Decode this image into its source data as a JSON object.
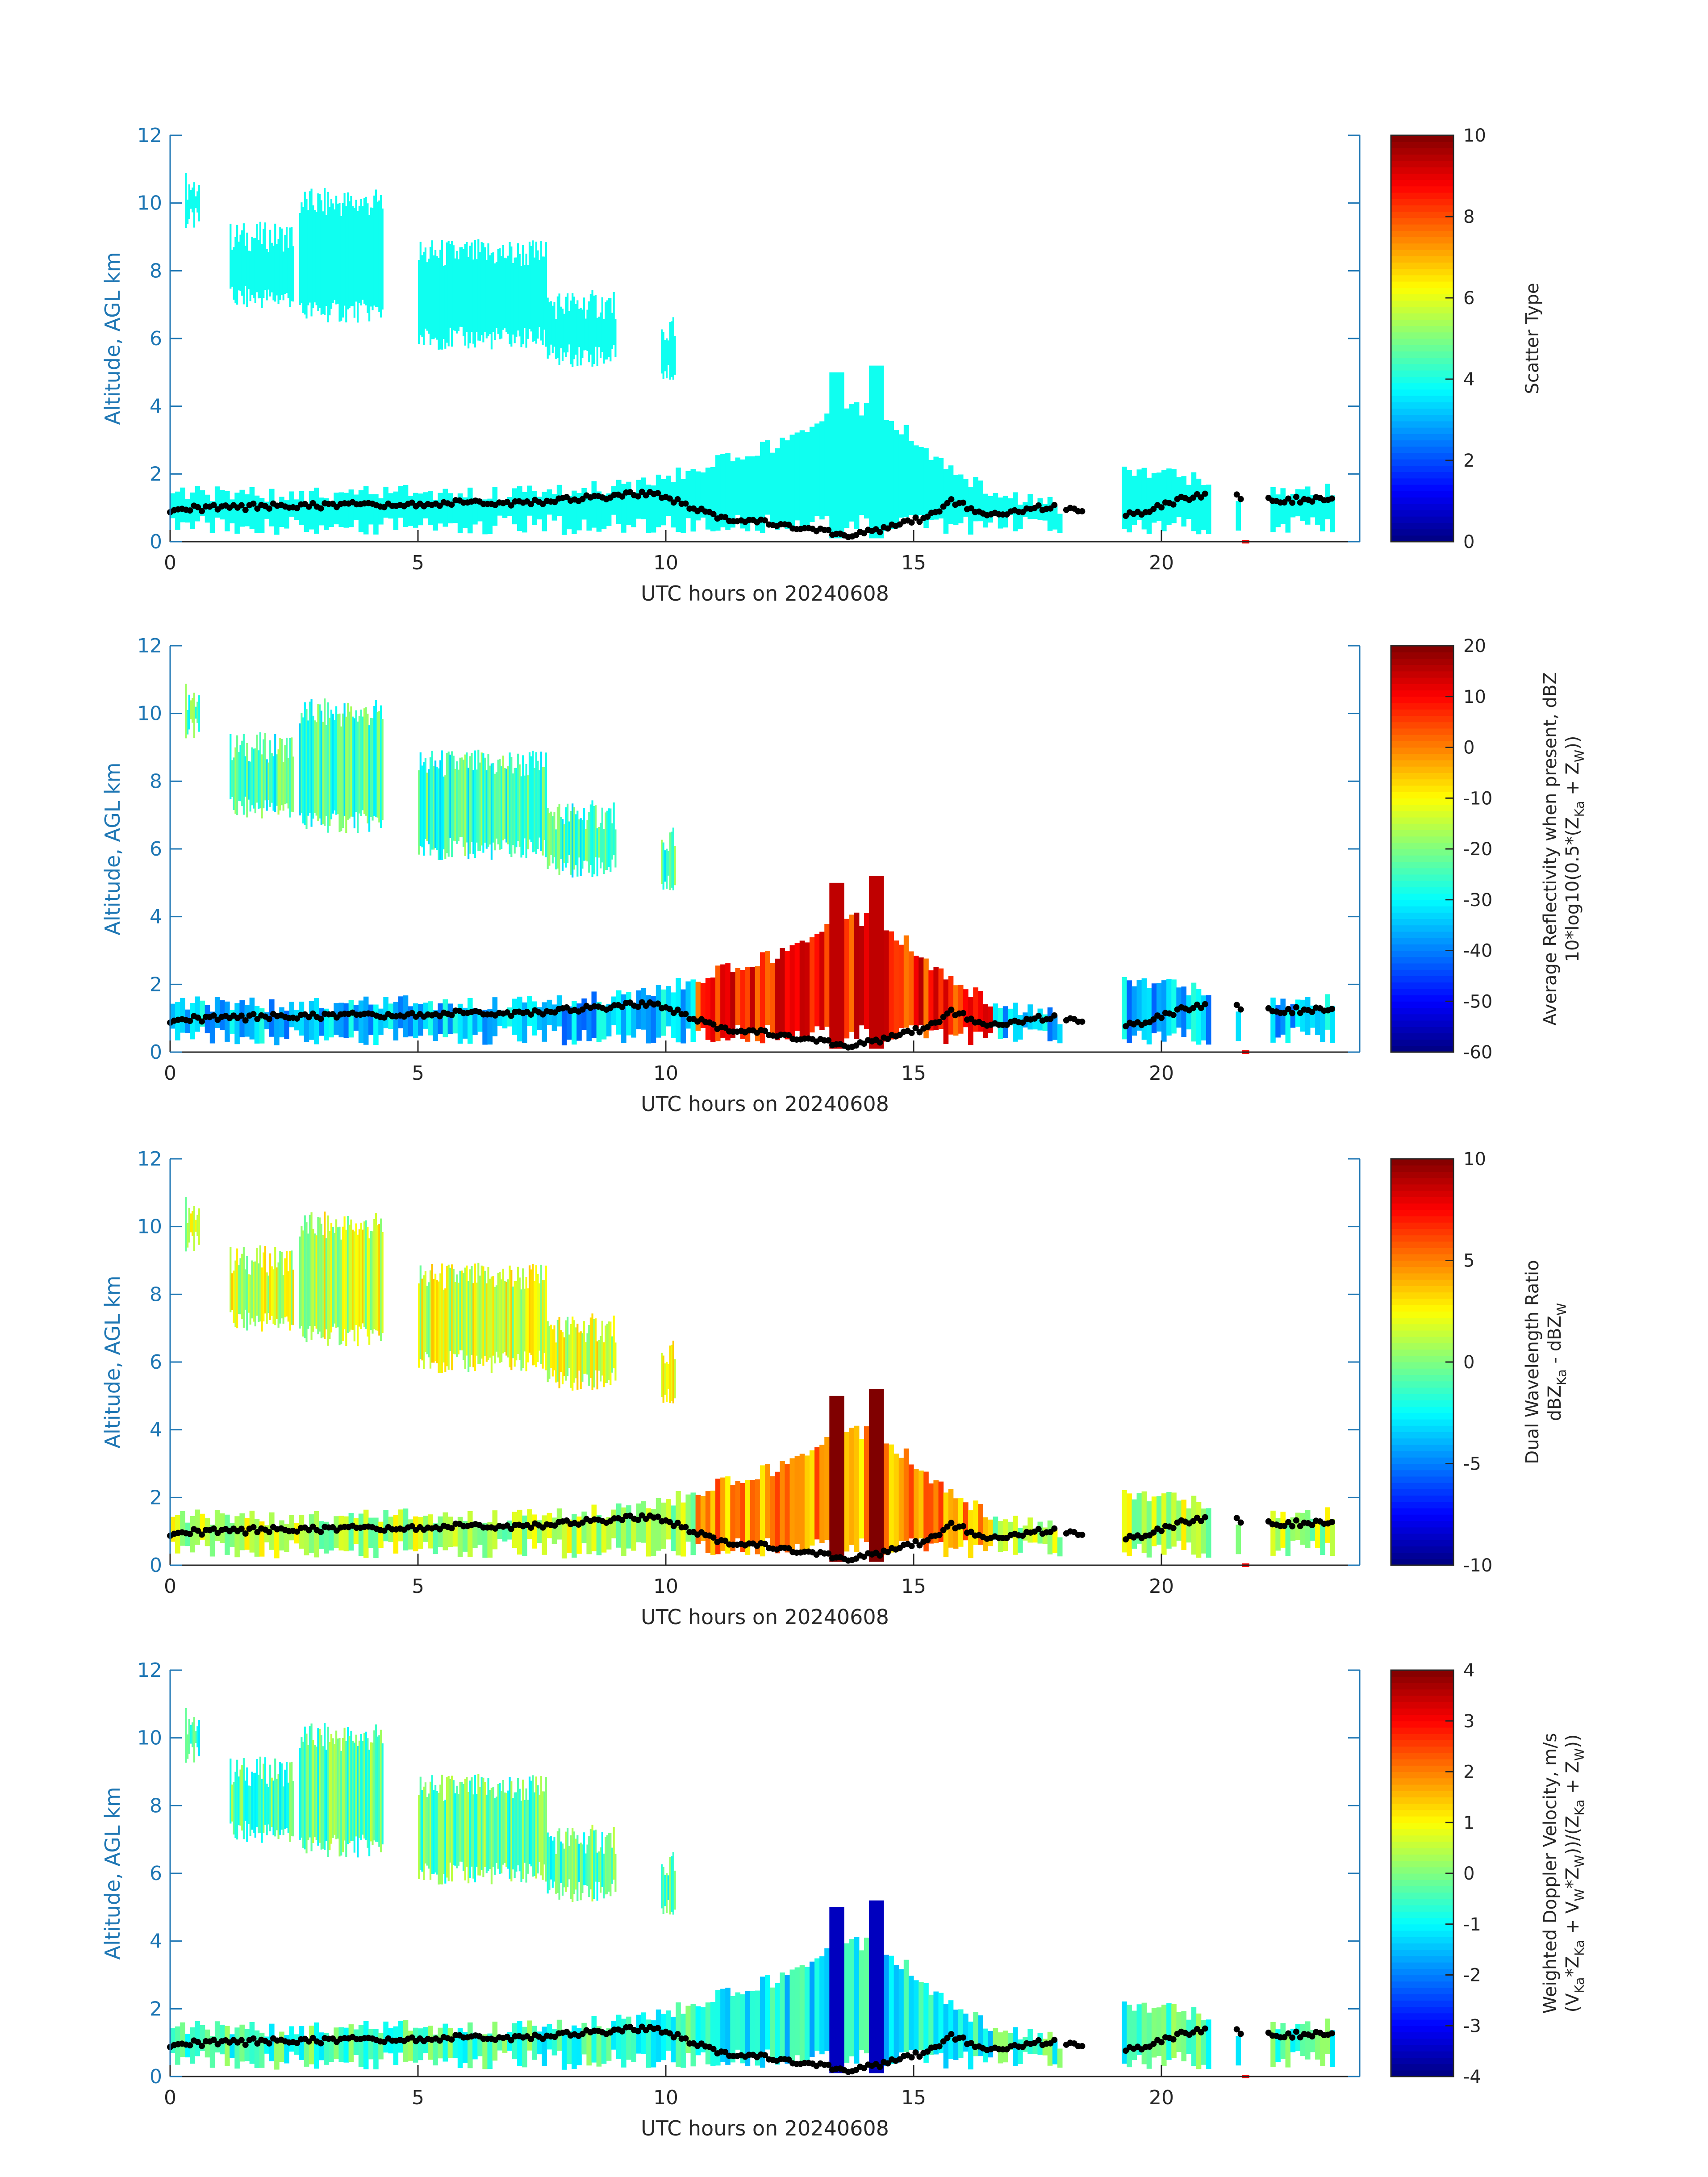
{
  "figure": {
    "background": "#ffffff",
    "axis_color": "#1f77b4",
    "text_color": "#262626",
    "boundary_color": "#000000"
  },
  "chart_data": [
    {
      "type": "heatmap",
      "xlabel": "UTC hours on 20240608",
      "ylabel": "Altitude, AGL km",
      "xlim": [
        0,
        24
      ],
      "ylim": [
        0,
        12
      ],
      "xticks": [
        "0",
        "5",
        "10",
        "15",
        "20"
      ],
      "yticks": [
        "0",
        "2",
        "4",
        "6",
        "8",
        "10",
        "12"
      ],
      "colorbar": {
        "label": [
          "Scatter Type"
        ],
        "range": [
          0,
          10
        ],
        "ticks": [
          "0",
          "2",
          "4",
          "6",
          "8",
          "10"
        ],
        "colormap": "jet"
      },
      "fill_value": 3.9,
      "high_cloud_regions": [
        {
          "x": [
            0.3,
            0.6
          ],
          "y": [
            9.5,
            10.5
          ]
        },
        {
          "x": [
            1.2,
            2.5
          ],
          "y": [
            7.2,
            9.0
          ]
        },
        {
          "x": [
            2.6,
            4.3
          ],
          "y": [
            6.8,
            10.0
          ]
        },
        {
          "x": [
            5.0,
            7.6
          ],
          "y": [
            6.0,
            8.5
          ]
        },
        {
          "x": [
            7.6,
            9.0
          ],
          "y": [
            5.5,
            7.0
          ]
        },
        {
          "x": [
            9.9,
            10.2
          ],
          "y": [
            5.0,
            6.2
          ]
        }
      ],
      "low_cloud_top": [
        [
          0,
          1.4
        ],
        [
          1,
          1.4
        ],
        [
          2,
          1.35
        ],
        [
          3,
          1.35
        ],
        [
          4,
          1.4
        ],
        [
          5,
          1.45
        ],
        [
          6,
          1.4
        ],
        [
          7,
          1.4
        ],
        [
          8,
          1.5
        ],
        [
          9,
          1.6
        ],
        [
          10,
          1.8
        ],
        [
          11,
          2.5
        ],
        [
          12,
          2.8
        ],
        [
          13,
          3.5
        ],
        [
          14,
          4.0
        ],
        [
          15,
          3.0
        ],
        [
          15.8,
          2.0
        ],
        [
          16.8,
          1.3
        ],
        [
          17.8,
          1.1
        ],
        [
          18.3,
          0
        ],
        [
          19.2,
          2.0
        ],
        [
          20.8,
          1.9
        ],
        [
          21.6,
          1.2
        ],
        [
          22.1,
          0
        ],
        [
          22.2,
          1.5
        ],
        [
          23.5,
          1.5
        ]
      ],
      "convective_towers": [
        {
          "x": [
            13.3,
            13.6
          ],
          "top": 5.0
        },
        {
          "x": [
            14.1,
            14.4
          ],
          "top": 5.2
        }
      ],
      "data_gaps": [
        [
          17.9,
          18.0
        ],
        [
          18.4,
          19.2
        ],
        [
          20.95,
          21.5
        ],
        [
          21.6,
          22.1
        ],
        [
          23.5,
          24.0
        ]
      ],
      "cloud_base_height": [
        [
          0,
          0.95
        ],
        [
          1,
          1.0
        ],
        [
          2,
          1.05
        ],
        [
          3,
          1.05
        ],
        [
          4,
          1.1
        ],
        [
          5,
          1.1
        ],
        [
          6,
          1.15
        ],
        [
          7,
          1.15
        ],
        [
          8,
          1.25
        ],
        [
          9,
          1.35
        ],
        [
          9.6,
          1.45
        ],
        [
          10.4,
          1.1
        ],
        [
          11,
          0.75
        ],
        [
          12,
          0.55
        ],
        [
          13,
          0.35
        ],
        [
          13.8,
          0.2
        ],
        [
          14.5,
          0.4
        ],
        [
          15.2,
          0.7
        ],
        [
          15.8,
          1.2
        ],
        [
          16.5,
          0.8
        ],
        [
          17.5,
          1.0
        ],
        [
          17.9,
          1.0
        ],
        [
          19.5,
          0.8
        ],
        [
          20,
          1.1
        ],
        [
          20.9,
          1.4
        ],
        [
          22.2,
          1.2
        ],
        [
          23.5,
          1.3
        ]
      ],
      "flag_marker": {
        "x": 21.7,
        "y": 0
      }
    },
    {
      "type": "heatmap",
      "xlabel": "UTC hours on 20240608",
      "ylabel": "Altitude, AGL km",
      "xlim": [
        0,
        24
      ],
      "ylim": [
        0,
        12
      ],
      "xticks": [
        "0",
        "5",
        "10",
        "15",
        "20"
      ],
      "yticks": [
        "0",
        "2",
        "4",
        "6",
        "8",
        "10",
        "12"
      ],
      "colorbar": {
        "label": [
          "Average Reflectivity when present, dBZ",
          "10*log10(0.5*(Z<sub>Ka</sub> + Z<sub>W</sub>))"
        ],
        "range": [
          -60,
          20
        ],
        "ticks": [
          "-60",
          "-50",
          "-40",
          "-30",
          "-20",
          "-10",
          "0",
          "10",
          "20"
        ],
        "colormap": "jet"
      },
      "high_cloud_value": -25,
      "low_cloud_value": -35,
      "precip_value": 8,
      "tower_value": 15
    },
    {
      "type": "heatmap",
      "xlabel": "UTC hours on 20240608",
      "ylabel": "Altitude, AGL km",
      "xlim": [
        0,
        24
      ],
      "ylim": [
        0,
        12
      ],
      "xticks": [
        "0",
        "5",
        "10",
        "15",
        "20"
      ],
      "yticks": [
        "0",
        "2",
        "4",
        "6",
        "8",
        "10",
        "12"
      ],
      "colorbar": {
        "label": [
          "Dual Wavelength Ratio",
          "dBZ<sub>Ka</sub> - dBZ<sub>W</sub>"
        ],
        "range": [
          -10,
          10
        ],
        "ticks": [
          "-10",
          "-5",
          "0",
          "5",
          "10"
        ],
        "colormap": "jet"
      },
      "high_cloud_value": 1.5,
      "low_cloud_value": 1.0,
      "precip_value": 4.5,
      "tower_value": 10
    },
    {
      "type": "heatmap",
      "xlabel": "UTC hours on 20240608",
      "ylabel": "Altitude, AGL km",
      "xlim": [
        0,
        24
      ],
      "ylim": [
        0,
        12
      ],
      "xticks": [
        "0",
        "5",
        "10",
        "15",
        "20"
      ],
      "yticks": [
        "0",
        "2",
        "4",
        "6",
        "8",
        "10",
        "12"
      ],
      "colorbar": {
        "label": [
          "Weighted Doppler Velocity, m/s",
          "(V<sub>Ka</sub>*Z<sub>Ka</sub> + V<sub>W</sub>*Z<sub>W</sub>))/(Z<sub>Ka</sub> + Z<sub>W</sub>))"
        ],
        "range": [
          -4,
          4
        ],
        "ticks": [
          "-4",
          "-3",
          "-2",
          "-1",
          "0",
          "1",
          "2",
          "3",
          "4"
        ],
        "colormap": "jet"
      },
      "high_cloud_value": -0.3,
      "low_cloud_value": -0.5,
      "precip_value": -1.0,
      "tower_value": -3.5
    }
  ]
}
